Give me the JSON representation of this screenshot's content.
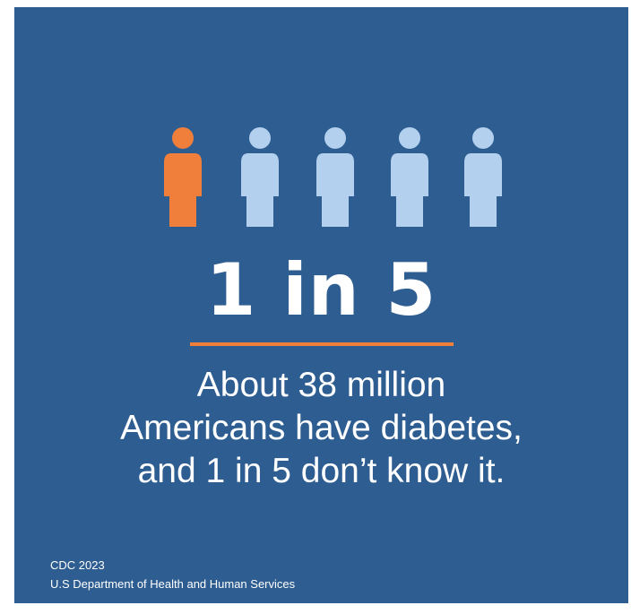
{
  "colors": {
    "background": "#2e5d91",
    "highlight_figure": "#f07f3c",
    "other_figure": "#b3d1ef",
    "divider": "#f07f3c",
    "text": "#ffffff"
  },
  "figures": {
    "icon": "person-icon",
    "total": 5,
    "highlighted": 1
  },
  "stat": "1 in 5",
  "message_lines": [
    "About 38 million",
    "Americans have diabetes,",
    "and 1 in 5 don’t know it."
  ],
  "source_lines": [
    "CDC 2023",
    "U.S Department of Health and Human Services"
  ]
}
